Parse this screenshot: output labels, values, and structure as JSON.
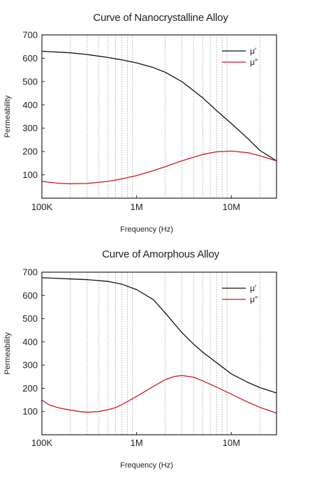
{
  "chart_data": [
    {
      "type": "line",
      "title": "Curve of Nanocrystalline Alloy",
      "xlabel": "Frequency (Hz)",
      "ylabel": "Permeability",
      "xscale": "log",
      "xlim": [
        100000,
        30000000
      ],
      "ylim": [
        0,
        700
      ],
      "x_tick_labels": [
        "100K",
        "1M",
        "10M"
      ],
      "y_tick_labels": [
        "100",
        "200",
        "300",
        "400",
        "500",
        "600",
        "700"
      ],
      "grid": "vertical minor dotted",
      "legend_position": "top-right",
      "series": [
        {
          "name": "μ′",
          "color": "#111111",
          "x": [
            100000,
            200000,
            300000,
            500000,
            700000,
            1000000,
            1500000,
            2000000,
            3000000,
            5000000,
            7000000,
            10000000,
            15000000,
            20000000,
            30000000
          ],
          "y": [
            630,
            623,
            616,
            603,
            593,
            580,
            560,
            540,
            500,
            430,
            375,
            320,
            255,
            205,
            160
          ]
        },
        {
          "name": "μ″",
          "color": "#d0161e",
          "x": [
            100000,
            150000,
            200000,
            300000,
            500000,
            700000,
            1000000,
            1500000,
            2000000,
            3000000,
            5000000,
            7000000,
            10000000,
            15000000,
            20000000,
            30000000
          ],
          "y": [
            72,
            64,
            62,
            63,
            72,
            83,
            97,
            118,
            135,
            160,
            188,
            199,
            202,
            195,
            182,
            160
          ]
        }
      ]
    },
    {
      "type": "line",
      "title": "Curve of Amorphous Alloy",
      "xlabel": "Frequency (Hz)",
      "ylabel": "Permeability",
      "xscale": "log",
      "xlim": [
        100000,
        30000000
      ],
      "ylim": [
        0,
        700
      ],
      "x_tick_labels": [
        "100K",
        "1M",
        "10M"
      ],
      "y_tick_labels": [
        "100",
        "200",
        "300",
        "400",
        "500",
        "600",
        "700"
      ],
      "grid": "vertical minor dotted",
      "legend_position": "top-right",
      "series": [
        {
          "name": "μ′",
          "color": "#111111",
          "x": [
            100000,
            150000,
            200000,
            300000,
            500000,
            700000,
            1000000,
            1500000,
            2000000,
            3000000,
            4000000,
            5000000,
            7000000,
            10000000,
            15000000,
            20000000,
            30000000
          ],
          "y": [
            676,
            673,
            671,
            668,
            660,
            648,
            625,
            582,
            525,
            440,
            390,
            355,
            310,
            262,
            225,
            203,
            180
          ]
        },
        {
          "name": "μ″",
          "color": "#d0161e",
          "x": [
            100000,
            120000,
            150000,
            200000,
            250000,
            300000,
            400000,
            500000,
            600000,
            700000,
            800000,
            1000000,
            1500000,
            2000000,
            2500000,
            3000000,
            4000000,
            5000000,
            7000000,
            10000000,
            15000000,
            20000000,
            30000000
          ],
          "y": [
            150,
            128,
            116,
            106,
            100,
            97,
            100,
            108,
            117,
            130,
            143,
            165,
            208,
            237,
            251,
            255,
            248,
            232,
            205,
            175,
            140,
            118,
            93
          ]
        }
      ]
    }
  ]
}
